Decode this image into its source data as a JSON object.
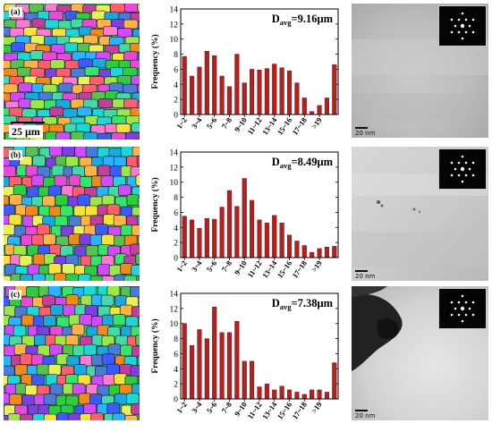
{
  "panels": [
    {
      "label": "(a)",
      "scale_bar": "25 μm",
      "tem_scale": "20 nm",
      "chart_data": {
        "type": "bar",
        "title": "Davg=9.16μm",
        "title_main": "D",
        "title_sub": "avg",
        "title_value": "=9.16μm",
        "ylabel": "Frequency (%)",
        "xlabel": "",
        "ylim": [
          0,
          14
        ],
        "yticks": [
          0,
          2,
          4,
          6,
          8,
          10,
          12,
          14
        ],
        "tick_labels": [
          "1~2",
          "3~4",
          "5~6",
          "7~8",
          "9~10",
          "11~12",
          "13~14",
          "15~16",
          "17~18",
          ">19"
        ],
        "values": [
          7.7,
          5.1,
          6.3,
          8.4,
          7.8,
          5.1,
          3.7,
          8.0,
          4.2,
          6.0,
          5.9,
          6.1,
          6.7,
          6.2,
          5.8,
          4.2,
          2.2,
          0.4,
          1.2,
          2.2,
          6.6
        ],
        "bar_color": "#b32020",
        "grid": false
      }
    },
    {
      "label": "(b)",
      "scale_bar": "",
      "tem_scale": "20 nm",
      "chart_data": {
        "type": "bar",
        "title": "Davg=8.49μm",
        "title_main": "D",
        "title_sub": "avg",
        "title_value": "=8.49μm",
        "ylabel": "Frequency (%)",
        "xlabel": "",
        "ylim": [
          0,
          14
        ],
        "yticks": [
          0,
          2,
          4,
          6,
          8,
          10,
          12,
          14
        ],
        "tick_labels": [
          "1~2",
          "3~4",
          "5~6",
          "7~8",
          "9~10",
          "11~12",
          "13~14",
          "15~16",
          "17~18",
          ">19"
        ],
        "values": [
          5.5,
          5.0,
          3.9,
          5.2,
          5.1,
          6.7,
          8.9,
          6.8,
          10.5,
          7.6,
          5.0,
          4.6,
          5.6,
          4.6,
          3.0,
          2.2,
          1.6,
          0.7,
          1.2,
          1.4,
          1.5
        ],
        "bar_color": "#b32020",
        "grid": false
      }
    },
    {
      "label": "(c)",
      "scale_bar": "",
      "tem_scale": "20 nm",
      "chart_data": {
        "type": "bar",
        "title": "Davg=7.38μm",
        "title_main": "D",
        "title_sub": "avg",
        "title_value": "=7.38μm",
        "ylabel": "Frequency (%)",
        "xlabel": "",
        "ylim": [
          0,
          14
        ],
        "yticks": [
          0,
          2,
          4,
          6,
          8,
          10,
          12,
          14
        ],
        "tick_labels": [
          "1~2",
          "3~4",
          "5~6",
          "7~8",
          "9~10",
          "11~12",
          "13~14",
          "15~16",
          "17~18",
          ">19"
        ],
        "values": [
          10.0,
          7.1,
          9.2,
          8.0,
          12.2,
          8.8,
          8.8,
          10.3,
          5.0,
          5.0,
          1.6,
          2.0,
          1.2,
          1.7,
          1.2,
          0.9,
          0.6,
          1.2,
          1.2,
          0.9,
          4.8
        ],
        "bar_color": "#b32020",
        "grid": false
      }
    }
  ]
}
